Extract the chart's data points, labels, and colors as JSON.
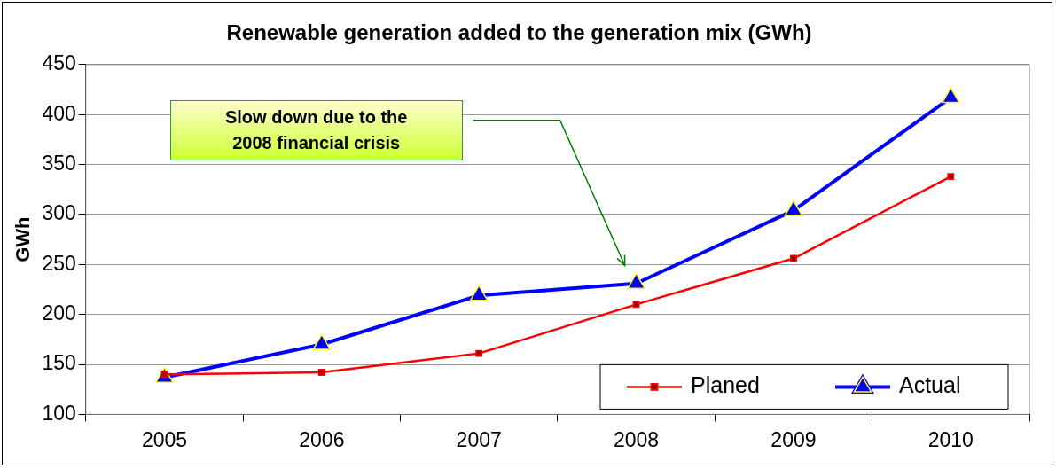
{
  "chart_data": {
    "type": "line",
    "title": "Renewable generation added to the generation mix (GWh)",
    "ylabel": "GWh",
    "categories": [
      "2005",
      "2006",
      "2007",
      "2008",
      "2009",
      "2010"
    ],
    "series": [
      {
        "name": "Planed",
        "color": "#ff0000",
        "marker": "square",
        "values": [
          140,
          142,
          161,
          210,
          256,
          338
        ]
      },
      {
        "name": "Actual",
        "color": "#0000ff",
        "marker": "triangle",
        "values": [
          137,
          170,
          219,
          231,
          304,
          417
        ]
      }
    ],
    "ylim": [
      100,
      450
    ],
    "yticks": [
      100,
      150,
      200,
      250,
      300,
      350,
      400,
      450
    ],
    "grid": "y",
    "legend": "bottom right",
    "annotations": [
      "Slow down due to the\n2008 financial crisis"
    ]
  }
}
